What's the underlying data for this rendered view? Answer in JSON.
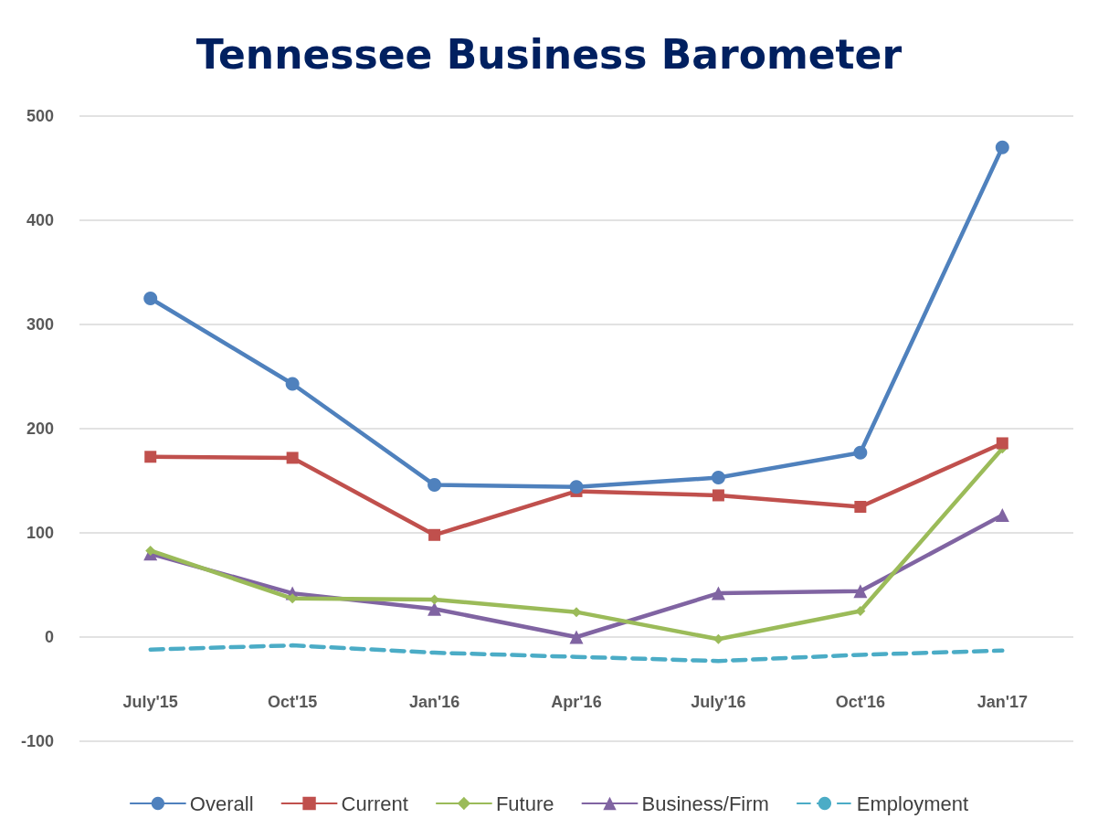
{
  "chart_data": {
    "type": "line",
    "title": "Tennessee Business Barometer",
    "categories": [
      "July'15",
      "Oct'15",
      "Jan'16",
      "Apr'16",
      "July'16",
      "Oct'16",
      "Jan'17"
    ],
    "series": [
      {
        "name": "Overall",
        "color": "#4f81bd",
        "marker": "circle",
        "values": [
          325,
          243,
          146,
          144,
          153,
          177,
          470
        ]
      },
      {
        "name": "Current",
        "color": "#c0504d",
        "marker": "square",
        "values": [
          173,
          172,
          98,
          140,
          136,
          125,
          186
        ]
      },
      {
        "name": "Future",
        "color": "#9bbb59",
        "marker": "diamond",
        "values": [
          83,
          37,
          36,
          24,
          -2,
          25,
          181
        ]
      },
      {
        "name": "Business/Firm",
        "color": "#8064a2",
        "marker": "triangle",
        "values": [
          80,
          42,
          27,
          0,
          42,
          44,
          117
        ]
      },
      {
        "name": "Employment",
        "color": "#4bacc6",
        "marker": "none",
        "line_style": "dashed",
        "values": [
          -12,
          -8,
          -15,
          -19,
          -23,
          -17,
          -13
        ]
      }
    ],
    "ylim": [
      -100,
      500
    ],
    "yticks": [
      -100,
      0,
      100,
      200,
      300,
      400,
      500
    ],
    "grid": "y",
    "legend": "bottom"
  }
}
